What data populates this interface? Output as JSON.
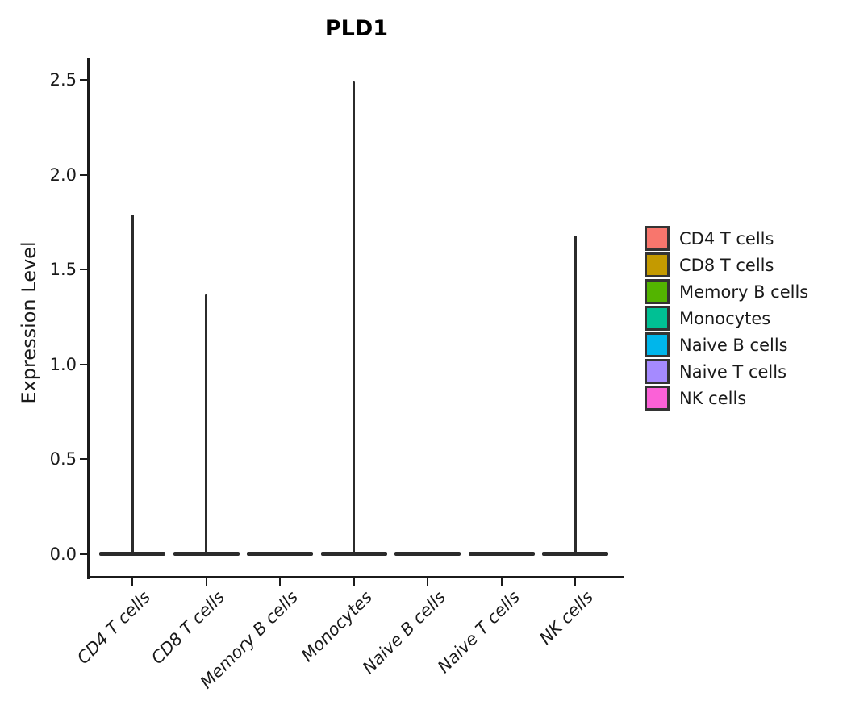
{
  "title": "PLD1",
  "chart_data": {
    "type": "violin",
    "title": "PLD1",
    "xlabel": "",
    "ylabel": "Expression Level",
    "ylim": [
      0,
      2.5
    ],
    "grid": false,
    "legend_position": "right",
    "outline_color": "#2b2b2b",
    "y_ticks": [
      "0.0",
      "0.5",
      "1.0",
      "1.5",
      "2.0",
      "2.5"
    ],
    "y_tick_values": [
      0,
      0.5,
      1.0,
      1.5,
      2.0,
      2.5
    ],
    "categories": [
      "CD4 T cells",
      "CD8 T cells",
      "Memory B cells",
      "Monocytes",
      "Naive B cells",
      "Naive T cells",
      "NK cells"
    ],
    "violins": [
      {
        "label": "CD4 T cells",
        "color": "#F8766D",
        "max_expression": 1.79,
        "bulk_at_zero": true
      },
      {
        "label": "CD8 T cells",
        "color": "#C49A00",
        "max_expression": 1.37,
        "bulk_at_zero": true
      },
      {
        "label": "Memory B cells",
        "color": "#53B400",
        "max_expression": 0.0,
        "bulk_at_zero": true
      },
      {
        "label": "Monocytes",
        "color": "#00C094",
        "max_expression": 2.49,
        "bulk_at_zero": true
      },
      {
        "label": "Naive B cells",
        "color": "#00B6EB",
        "max_expression": 0.0,
        "bulk_at_zero": true
      },
      {
        "label": "Naive T cells",
        "color": "#A58AFF",
        "max_expression": 0.0,
        "bulk_at_zero": true
      },
      {
        "label": "NK cells",
        "color": "#FB61D7",
        "max_expression": 1.68,
        "bulk_at_zero": true
      }
    ],
    "legend": {
      "entries": [
        {
          "label": "CD4 T cells",
          "color": "#F8766D"
        },
        {
          "label": "CD8 T cells",
          "color": "#C49A00"
        },
        {
          "label": "Memory B cells",
          "color": "#53B400"
        },
        {
          "label": "Monocytes",
          "color": "#00C094"
        },
        {
          "label": "Naive B cells",
          "color": "#00B6EB"
        },
        {
          "label": "Naive T cells",
          "color": "#A58AFF"
        },
        {
          "label": "NK cells",
          "color": "#FB61D7"
        }
      ]
    }
  }
}
